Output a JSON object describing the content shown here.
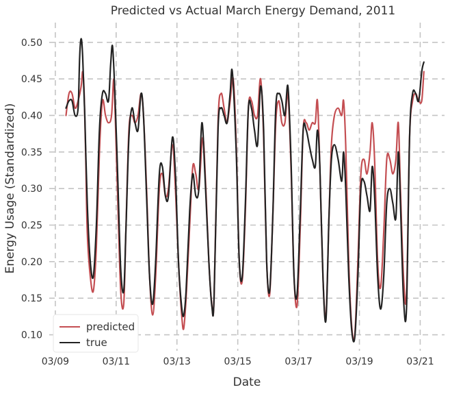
{
  "chart_data": {
    "type": "line",
    "title": "Predicted vs Actual March Energy Demand, 2011",
    "xlabel": "Date",
    "ylabel": "Energy Usage (Standardized)",
    "xlim": [
      -0.2,
      12.8
    ],
    "ylim": [
      0.078,
      0.527
    ],
    "x_unit": "days after 03/09",
    "x_ticks": [
      0,
      2,
      4,
      6,
      8,
      10,
      12
    ],
    "x_tick_labels": [
      "03/09",
      "03/11",
      "03/13",
      "03/15",
      "03/17",
      "03/19",
      "03/21"
    ],
    "y_ticks": [
      0.1,
      0.15,
      0.2,
      0.25,
      0.3,
      0.35,
      0.4,
      0.45,
      0.5
    ],
    "y_tick_labels": [
      "0.10",
      "0.15",
      "0.20",
      "0.25",
      "0.30",
      "0.35",
      "0.40",
      "0.45",
      "0.50"
    ],
    "grid": true,
    "legend_position": "bottom-left",
    "series": [
      {
        "name": "predicted",
        "color": "#c44e52",
        "points": [
          [
            0.35,
            0.4
          ],
          [
            0.45,
            0.43
          ],
          [
            0.55,
            0.43
          ],
          [
            0.65,
            0.41
          ],
          [
            0.75,
            0.42
          ],
          [
            0.85,
            0.44
          ],
          [
            0.9,
            0.46
          ],
          [
            0.95,
            0.43
          ],
          [
            1.0,
            0.34
          ],
          [
            1.05,
            0.24
          ],
          [
            1.15,
            0.18
          ],
          [
            1.25,
            0.16
          ],
          [
            1.35,
            0.22
          ],
          [
            1.45,
            0.35
          ],
          [
            1.55,
            0.42
          ],
          [
            1.65,
            0.4
          ],
          [
            1.75,
            0.39
          ],
          [
            1.85,
            0.4
          ],
          [
            1.92,
            0.45
          ],
          [
            1.97,
            0.4
          ],
          [
            2.05,
            0.29
          ],
          [
            2.15,
            0.16
          ],
          [
            2.25,
            0.142
          ],
          [
            2.32,
            0.24
          ],
          [
            2.42,
            0.38
          ],
          [
            2.52,
            0.4
          ],
          [
            2.62,
            0.39
          ],
          [
            2.72,
            0.4
          ],
          [
            2.82,
            0.43
          ],
          [
            2.9,
            0.4
          ],
          [
            3.0,
            0.3
          ],
          [
            3.1,
            0.18
          ],
          [
            3.2,
            0.127
          ],
          [
            3.3,
            0.18
          ],
          [
            3.42,
            0.3
          ],
          [
            3.52,
            0.32
          ],
          [
            3.62,
            0.29
          ],
          [
            3.72,
            0.3
          ],
          [
            3.85,
            0.36
          ],
          [
            3.95,
            0.3
          ],
          [
            4.05,
            0.2
          ],
          [
            4.15,
            0.13
          ],
          [
            4.22,
            0.108
          ],
          [
            4.3,
            0.15
          ],
          [
            4.42,
            0.25
          ],
          [
            4.52,
            0.33
          ],
          [
            4.62,
            0.32
          ],
          [
            4.72,
            0.3
          ],
          [
            4.85,
            0.37
          ],
          [
            4.95,
            0.3
          ],
          [
            5.05,
            0.2
          ],
          [
            5.15,
            0.14
          ],
          [
            5.22,
            0.15
          ],
          [
            5.35,
            0.39
          ],
          [
            5.45,
            0.43
          ],
          [
            5.55,
            0.41
          ],
          [
            5.65,
            0.39
          ],
          [
            5.75,
            0.42
          ],
          [
            5.85,
            0.45
          ],
          [
            5.95,
            0.36
          ],
          [
            6.05,
            0.2
          ],
          [
            6.15,
            0.175
          ],
          [
            6.25,
            0.27
          ],
          [
            6.35,
            0.41
          ],
          [
            6.45,
            0.42
          ],
          [
            6.55,
            0.4
          ],
          [
            6.65,
            0.4
          ],
          [
            6.75,
            0.45
          ],
          [
            6.85,
            0.37
          ],
          [
            6.95,
            0.2
          ],
          [
            7.05,
            0.155
          ],
          [
            7.15,
            0.26
          ],
          [
            7.25,
            0.39
          ],
          [
            7.35,
            0.42
          ],
          [
            7.45,
            0.39
          ],
          [
            7.55,
            0.39
          ],
          [
            7.65,
            0.43
          ],
          [
            7.75,
            0.33
          ],
          [
            7.85,
            0.18
          ],
          [
            7.95,
            0.14
          ],
          [
            8.05,
            0.24
          ],
          [
            8.15,
            0.38
          ],
          [
            8.25,
            0.39
          ],
          [
            8.35,
            0.38
          ],
          [
            8.45,
            0.39
          ],
          [
            8.55,
            0.39
          ],
          [
            8.62,
            0.42
          ],
          [
            8.7,
            0.33
          ],
          [
            8.8,
            0.18
          ],
          [
            8.9,
            0.125
          ],
          [
            9.0,
            0.26
          ],
          [
            9.08,
            0.36
          ],
          [
            9.18,
            0.4
          ],
          [
            9.3,
            0.41
          ],
          [
            9.42,
            0.4
          ],
          [
            9.48,
            0.42
          ],
          [
            9.55,
            0.36
          ],
          [
            9.65,
            0.2
          ],
          [
            9.75,
            0.11
          ],
          [
            9.85,
            0.1
          ],
          [
            9.95,
            0.2
          ],
          [
            10.05,
            0.32
          ],
          [
            10.15,
            0.34
          ],
          [
            10.25,
            0.32
          ],
          [
            10.35,
            0.35
          ],
          [
            10.42,
            0.39
          ],
          [
            10.5,
            0.34
          ],
          [
            10.6,
            0.2
          ],
          [
            10.7,
            0.165
          ],
          [
            10.8,
            0.24
          ],
          [
            10.9,
            0.34
          ],
          [
            11.0,
            0.34
          ],
          [
            11.1,
            0.32
          ],
          [
            11.2,
            0.34
          ],
          [
            11.28,
            0.39
          ],
          [
            11.35,
            0.3
          ],
          [
            11.45,
            0.18
          ],
          [
            11.55,
            0.155
          ],
          [
            11.65,
            0.37
          ],
          [
            11.75,
            0.42
          ],
          [
            11.85,
            0.43
          ],
          [
            11.95,
            0.42
          ],
          [
            12.05,
            0.42
          ],
          [
            12.12,
            0.46
          ]
        ]
      },
      {
        "name": "true",
        "color": "#222222",
        "points": [
          [
            0.35,
            0.41
          ],
          [
            0.45,
            0.42
          ],
          [
            0.55,
            0.42
          ],
          [
            0.65,
            0.4
          ],
          [
            0.75,
            0.41
          ],
          [
            0.8,
            0.48
          ],
          [
            0.85,
            0.505
          ],
          [
            0.9,
            0.48
          ],
          [
            0.97,
            0.4
          ],
          [
            1.05,
            0.28
          ],
          [
            1.15,
            0.2
          ],
          [
            1.25,
            0.18
          ],
          [
            1.35,
            0.25
          ],
          [
            1.45,
            0.38
          ],
          [
            1.55,
            0.43
          ],
          [
            1.65,
            0.43
          ],
          [
            1.75,
            0.42
          ],
          [
            1.82,
            0.47
          ],
          [
            1.88,
            0.495
          ],
          [
            1.95,
            0.44
          ],
          [
            2.05,
            0.32
          ],
          [
            2.15,
            0.19
          ],
          [
            2.25,
            0.16
          ],
          [
            2.32,
            0.24
          ],
          [
            2.42,
            0.37
          ],
          [
            2.52,
            0.41
          ],
          [
            2.62,
            0.39
          ],
          [
            2.72,
            0.38
          ],
          [
            2.82,
            0.43
          ],
          [
            2.9,
            0.4
          ],
          [
            3.0,
            0.29
          ],
          [
            3.1,
            0.18
          ],
          [
            3.2,
            0.142
          ],
          [
            3.3,
            0.2
          ],
          [
            3.42,
            0.32
          ],
          [
            3.52,
            0.33
          ],
          [
            3.62,
            0.29
          ],
          [
            3.72,
            0.29
          ],
          [
            3.85,
            0.37
          ],
          [
            3.95,
            0.32
          ],
          [
            4.05,
            0.2
          ],
          [
            4.15,
            0.14
          ],
          [
            4.22,
            0.126
          ],
          [
            4.3,
            0.16
          ],
          [
            4.42,
            0.27
          ],
          [
            4.52,
            0.32
          ],
          [
            4.62,
            0.29
          ],
          [
            4.72,
            0.3
          ],
          [
            4.82,
            0.39
          ],
          [
            4.92,
            0.32
          ],
          [
            5.05,
            0.2
          ],
          [
            5.15,
            0.138
          ],
          [
            5.22,
            0.15
          ],
          [
            5.35,
            0.38
          ],
          [
            5.45,
            0.41
          ],
          [
            5.55,
            0.4
          ],
          [
            5.65,
            0.39
          ],
          [
            5.75,
            0.43
          ],
          [
            5.82,
            0.46
          ],
          [
            5.95,
            0.35
          ],
          [
            6.05,
            0.2
          ],
          [
            6.15,
            0.18
          ],
          [
            6.25,
            0.28
          ],
          [
            6.35,
            0.41
          ],
          [
            6.45,
            0.41
          ],
          [
            6.55,
            0.38
          ],
          [
            6.65,
            0.36
          ],
          [
            6.75,
            0.44
          ],
          [
            6.85,
            0.38
          ],
          [
            6.95,
            0.2
          ],
          [
            7.05,
            0.16
          ],
          [
            7.15,
            0.26
          ],
          [
            7.25,
            0.41
          ],
          [
            7.35,
            0.43
          ],
          [
            7.45,
            0.42
          ],
          [
            7.55,
            0.4
          ],
          [
            7.65,
            0.44
          ],
          [
            7.75,
            0.34
          ],
          [
            7.85,
            0.18
          ],
          [
            7.95,
            0.155
          ],
          [
            8.05,
            0.26
          ],
          [
            8.15,
            0.38
          ],
          [
            8.25,
            0.38
          ],
          [
            8.35,
            0.36
          ],
          [
            8.45,
            0.34
          ],
          [
            8.55,
            0.33
          ],
          [
            8.62,
            0.38
          ],
          [
            8.7,
            0.33
          ],
          [
            8.8,
            0.18
          ],
          [
            8.9,
            0.12
          ],
          [
            9.0,
            0.26
          ],
          [
            9.08,
            0.34
          ],
          [
            9.18,
            0.36
          ],
          [
            9.3,
            0.34
          ],
          [
            9.42,
            0.31
          ],
          [
            9.48,
            0.35
          ],
          [
            9.55,
            0.3
          ],
          [
            9.65,
            0.18
          ],
          [
            9.75,
            0.105
          ],
          [
            9.85,
            0.097
          ],
          [
            9.95,
            0.18
          ],
          [
            10.05,
            0.3
          ],
          [
            10.15,
            0.31
          ],
          [
            10.25,
            0.29
          ],
          [
            10.35,
            0.27
          ],
          [
            10.42,
            0.33
          ],
          [
            10.5,
            0.29
          ],
          [
            10.6,
            0.18
          ],
          [
            10.7,
            0.135
          ],
          [
            10.8,
            0.18
          ],
          [
            10.9,
            0.28
          ],
          [
            11.0,
            0.3
          ],
          [
            11.1,
            0.28
          ],
          [
            11.2,
            0.26
          ],
          [
            11.28,
            0.35
          ],
          [
            11.35,
            0.28
          ],
          [
            11.45,
            0.15
          ],
          [
            11.55,
            0.136
          ],
          [
            11.65,
            0.37
          ],
          [
            11.75,
            0.43
          ],
          [
            11.85,
            0.43
          ],
          [
            11.95,
            0.42
          ],
          [
            12.05,
            0.46
          ],
          [
            12.12,
            0.473
          ]
        ]
      }
    ]
  }
}
